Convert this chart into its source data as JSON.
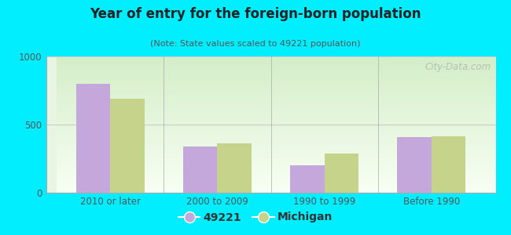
{
  "title": "Year of entry for the foreign-born population",
  "subtitle": "(Note: State values scaled to 49221 population)",
  "categories": [
    "2010 or later",
    "2000 to 2009",
    "1990 to 1999",
    "Before 1990"
  ],
  "values_49221": [
    800,
    340,
    200,
    410
  ],
  "values_michigan": [
    690,
    360,
    290,
    415
  ],
  "color_49221": "#c4a8dc",
  "color_michigan": "#c5d48a",
  "background_outer": "#00eeff",
  "background_inner": "#e8f5e2",
  "ylim": [
    0,
    1000
  ],
  "yticks": [
    0,
    500,
    1000
  ],
  "legend_label_1": "49221",
  "legend_label_2": "Michigan",
  "bar_width": 0.32,
  "watermark": "City-Data.com",
  "grid_color": "#cccccc",
  "tick_color": "#555555",
  "spine_color": "#aaaaaa"
}
